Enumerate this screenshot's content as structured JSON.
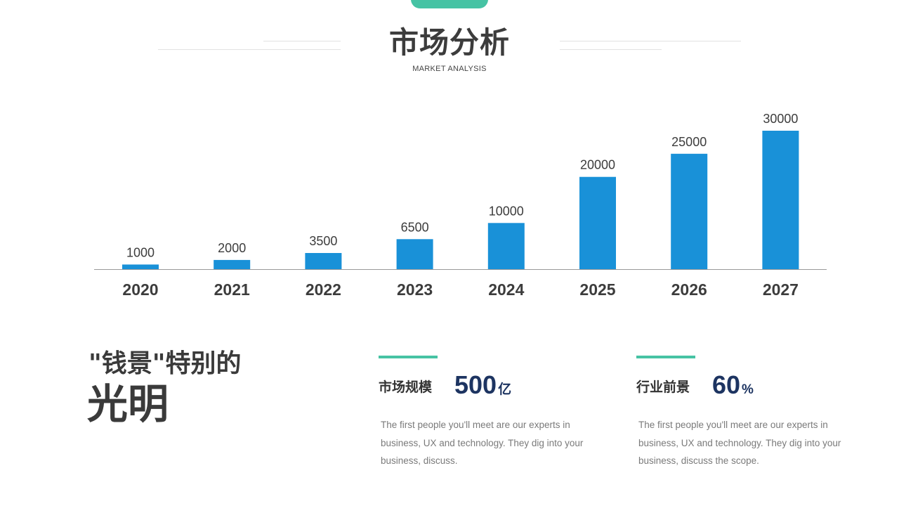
{
  "header": {
    "title": "市场分析",
    "subtitle": "MARKET ANALYSIS"
  },
  "colors": {
    "accent": "#46c3a4",
    "bar": "#1991d8",
    "value_text": "#1d3461"
  },
  "chart_data": {
    "type": "bar",
    "categories": [
      "2020",
      "2021",
      "2022",
      "2023",
      "2024",
      "2025",
      "2026",
      "2027"
    ],
    "values": [
      1000,
      2000,
      3500,
      6500,
      10000,
      20000,
      25000,
      30000
    ],
    "data_labels": true,
    "grid": false,
    "legend": "none",
    "ylim": [
      0,
      30000
    ],
    "title": "",
    "xlabel": "",
    "ylabel": ""
  },
  "highlight": {
    "line1": "\"钱景\"特别的",
    "line2": "光明"
  },
  "stats": [
    {
      "label": "市场规模",
      "value": "500",
      "unit": "亿",
      "description": "The first people you'll meet are our experts in business, UX and technology. They dig into your business, discuss."
    },
    {
      "label": "行业前景",
      "value": "60",
      "unit": "%",
      "description": "The first people you'll meet are our experts in business, UX and technology. They dig into your business, discuss the scope."
    }
  ]
}
